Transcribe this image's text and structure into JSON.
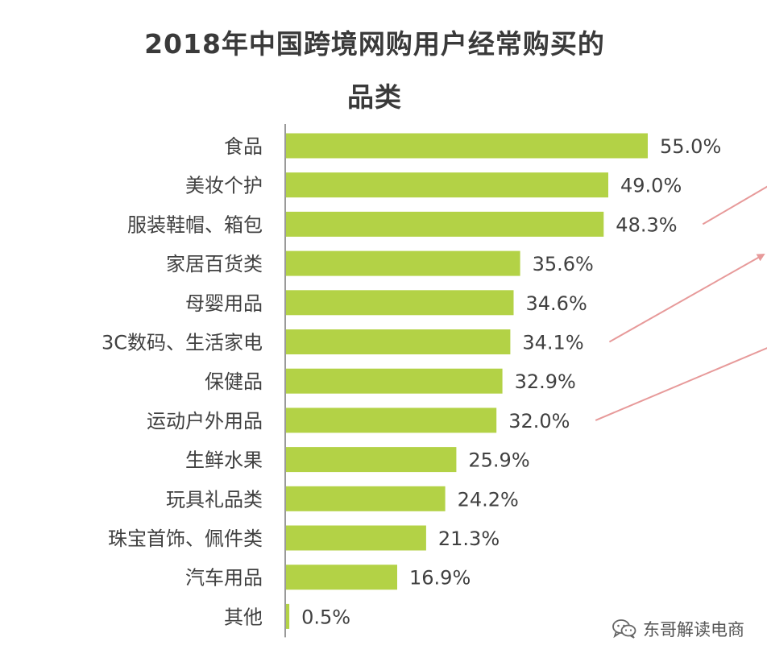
{
  "chart_data": {
    "type": "bar",
    "orientation": "horizontal",
    "title": "2018年中国跨境网购用户经常购买的品类",
    "title_lines": [
      "2018年中国跨境网购用户经常购买的",
      "品类"
    ],
    "categories": [
      "食品",
      "美妆个护",
      "服装鞋帽、箱包",
      "家居百货类",
      "母婴用品",
      "3C数码、生活家电",
      "保健品",
      "运动户外用品",
      "生鲜水果",
      "玩具礼品类",
      "珠宝首饰、佩件类",
      "汽车用品",
      "其他"
    ],
    "values": [
      55.0,
      49.0,
      48.3,
      35.6,
      34.6,
      34.1,
      32.9,
      32.0,
      25.9,
      24.2,
      21.3,
      16.9,
      0.5
    ],
    "data_labels": [
      "55.0%",
      "49.0%",
      "48.3%",
      "35.6%",
      "34.6%",
      "34.1%",
      "32.9%",
      "32.0%",
      "25.9%",
      "24.2%",
      "21.3%",
      "16.9%",
      "0.5%"
    ],
    "xlim": [
      0,
      55
    ],
    "bar_color": "#b3d246",
    "axis_color": "#9a9a9a",
    "highlight_arrow_color": "#e79a9a",
    "arrows_from": [
      "服装鞋帽、箱包",
      "3C数码、生活家电",
      "运动户外用品"
    ],
    "grid": false,
    "legend": "none"
  },
  "watermark": {
    "text": "东哥解读电商",
    "icon": "wechat-icon"
  }
}
